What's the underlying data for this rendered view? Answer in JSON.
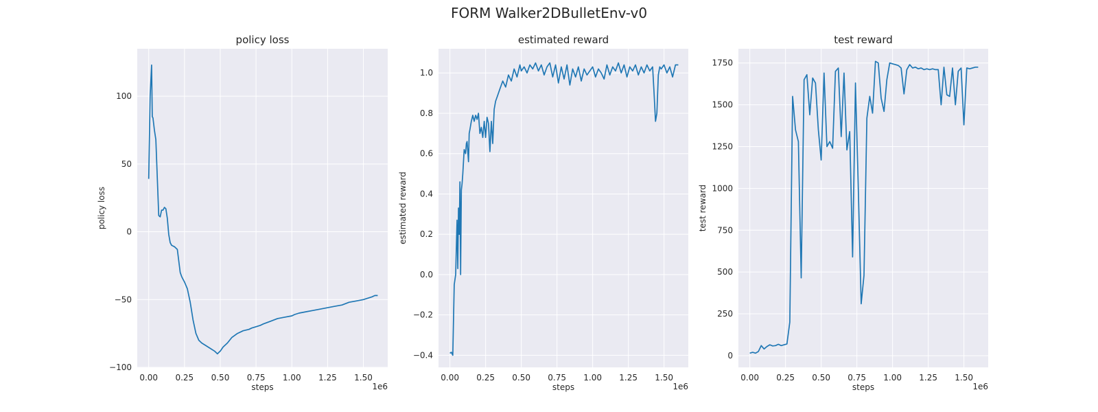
{
  "figure": {
    "suptitle": "FORM Walker2DBulletEnv-v0"
  },
  "chart_data": [
    {
      "type": "line",
      "title": "policy loss",
      "xlabel": "steps",
      "ylabel": "policy loss",
      "x_offset_label": "1e6",
      "xlim": [
        -0.08,
        1.67
      ],
      "ylim": [
        -100,
        135
      ],
      "xticks": [
        0.0,
        0.25,
        0.5,
        0.75,
        1.0,
        1.25,
        1.5
      ],
      "xtick_labels": [
        "0.00",
        "0.25",
        "0.50",
        "0.75",
        "1.00",
        "1.25",
        "1.50"
      ],
      "yticks": [
        -100,
        -50,
        0,
        50,
        100
      ],
      "ytick_labels": [
        "−100",
        "−50",
        "0",
        "50",
        "100"
      ],
      "grid": true,
      "color": "#1f77b4",
      "x": [
        0.0,
        0.01,
        0.02,
        0.025,
        0.03,
        0.04,
        0.05,
        0.06,
        0.07,
        0.08,
        0.09,
        0.1,
        0.11,
        0.12,
        0.13,
        0.14,
        0.15,
        0.16,
        0.17,
        0.18,
        0.2,
        0.22,
        0.23,
        0.24,
        0.25,
        0.27,
        0.29,
        0.31,
        0.33,
        0.35,
        0.37,
        0.4,
        0.43,
        0.46,
        0.48,
        0.5,
        0.52,
        0.55,
        0.58,
        0.62,
        0.66,
        0.7,
        0.72,
        0.75,
        0.78,
        0.8,
        0.85,
        0.9,
        0.95,
        1.0,
        1.02,
        1.05,
        1.1,
        1.15,
        1.2,
        1.25,
        1.3,
        1.35,
        1.4,
        1.45,
        1.5,
        1.53,
        1.56,
        1.58,
        1.6
      ],
      "y": [
        39,
        100,
        123,
        85,
        84,
        75,
        68,
        40,
        12,
        11,
        16,
        16,
        18,
        17,
        10,
        -2,
        -8,
        -10,
        -10.5,
        -11,
        -13,
        -30,
        -33,
        -35,
        -37,
        -42,
        -52,
        -65,
        -75,
        -80,
        -82,
        -84,
        -86,
        -88,
        -90,
        -88,
        -85,
        -82,
        -78,
        -75,
        -73,
        -72,
        -71,
        -70,
        -69,
        -68,
        -66,
        -64,
        -63,
        -62,
        -61,
        -60,
        -59,
        -58,
        -57,
        -56,
        -55,
        -54,
        -52,
        -51,
        -50,
        -49,
        -48,
        -47,
        -47
      ]
    },
    {
      "type": "line",
      "title": "estimated reward",
      "xlabel": "steps",
      "ylabel": "estimated reward",
      "x_offset_label": "1e6",
      "xlim": [
        -0.08,
        1.67
      ],
      "ylim": [
        -0.46,
        1.12
      ],
      "xticks": [
        0.0,
        0.25,
        0.5,
        0.75,
        1.0,
        1.25,
        1.5
      ],
      "xtick_labels": [
        "0.00",
        "0.25",
        "0.50",
        "0.75",
        "1.00",
        "1.25",
        "1.50"
      ],
      "yticks": [
        -0.4,
        -0.2,
        0.0,
        0.2,
        0.4,
        0.6,
        0.8,
        1.0
      ],
      "ytick_labels": [
        "−0.4",
        "−0.2",
        "0.0",
        "0.2",
        "0.4",
        "0.6",
        "0.8",
        "1.0"
      ],
      "grid": true,
      "color": "#1f77b4",
      "x": [
        0.0,
        0.01,
        0.02,
        0.03,
        0.04,
        0.05,
        0.055,
        0.06,
        0.065,
        0.07,
        0.075,
        0.08,
        0.085,
        0.09,
        0.1,
        0.11,
        0.115,
        0.12,
        0.13,
        0.135,
        0.14,
        0.15,
        0.16,
        0.17,
        0.18,
        0.19,
        0.2,
        0.21,
        0.22,
        0.23,
        0.24,
        0.25,
        0.26,
        0.27,
        0.28,
        0.29,
        0.3,
        0.31,
        0.32,
        0.33,
        0.35,
        0.37,
        0.39,
        0.41,
        0.43,
        0.45,
        0.47,
        0.49,
        0.5,
        0.52,
        0.54,
        0.56,
        0.58,
        0.6,
        0.62,
        0.64,
        0.66,
        0.68,
        0.7,
        0.72,
        0.74,
        0.76,
        0.78,
        0.8,
        0.82,
        0.84,
        0.86,
        0.88,
        0.9,
        0.92,
        0.94,
        0.96,
        0.98,
        1.0,
        1.02,
        1.04,
        1.06,
        1.08,
        1.1,
        1.12,
        1.14,
        1.16,
        1.18,
        1.2,
        1.22,
        1.24,
        1.26,
        1.28,
        1.3,
        1.32,
        1.34,
        1.36,
        1.38,
        1.4,
        1.42,
        1.43,
        1.44,
        1.45,
        1.46,
        1.47,
        1.48,
        1.5,
        1.52,
        1.54,
        1.56,
        1.58,
        1.6
      ],
      "y": [
        -0.39,
        -0.385,
        -0.4,
        -0.05,
        0.0,
        0.27,
        0.03,
        0.33,
        0.2,
        0.46,
        0.0,
        0.42,
        0.45,
        0.5,
        0.62,
        0.6,
        0.65,
        0.66,
        0.56,
        0.7,
        0.72,
        0.76,
        0.79,
        0.76,
        0.79,
        0.77,
        0.8,
        0.7,
        0.73,
        0.68,
        0.76,
        0.68,
        0.78,
        0.75,
        0.61,
        0.76,
        0.65,
        0.82,
        0.86,
        0.88,
        0.92,
        0.96,
        0.93,
        0.99,
        0.96,
        1.02,
        0.98,
        1.04,
        1.01,
        1.03,
        1.0,
        1.04,
        1.02,
        1.05,
        1.01,
        1.04,
        0.99,
        1.03,
        1.05,
        0.98,
        1.04,
        0.95,
        1.03,
        0.97,
        1.04,
        0.94,
        1.02,
        0.98,
        1.03,
        0.96,
        1.02,
        0.99,
        1.01,
        1.03,
        0.98,
        1.02,
        1.0,
        0.97,
        1.04,
        0.99,
        1.03,
        1.01,
        1.05,
        1.0,
        1.04,
        0.98,
        1.03,
        1.01,
        1.04,
        0.99,
        1.03,
        1.0,
        1.04,
        1.01,
        1.03,
        0.9,
        0.76,
        0.8,
        0.99,
        1.03,
        1.02,
        1.04,
        1.0,
        1.03,
        0.98,
        1.04,
        1.04
      ]
    },
    {
      "type": "line",
      "title": "test reward",
      "xlabel": "steps",
      "ylabel": "test reward",
      "x_offset_label": "1e6",
      "xlim": [
        -0.08,
        1.67
      ],
      "ylim": [
        -70,
        1835
      ],
      "xticks": [
        0.0,
        0.25,
        0.5,
        0.75,
        1.0,
        1.25,
        1.5
      ],
      "xtick_labels": [
        "0.00",
        "0.25",
        "0.50",
        "0.75",
        "1.00",
        "1.25",
        "1.50"
      ],
      "yticks": [
        0,
        250,
        500,
        750,
        1000,
        1250,
        1500,
        1750
      ],
      "ytick_labels": [
        "0",
        "250",
        "500",
        "750",
        "1000",
        "1250",
        "1500",
        "1750"
      ],
      "grid": true,
      "color": "#1f77b4",
      "x": [
        0.0,
        0.02,
        0.04,
        0.06,
        0.08,
        0.1,
        0.12,
        0.14,
        0.16,
        0.18,
        0.2,
        0.22,
        0.24,
        0.26,
        0.28,
        0.3,
        0.32,
        0.34,
        0.36,
        0.38,
        0.4,
        0.42,
        0.44,
        0.46,
        0.48,
        0.5,
        0.52,
        0.54,
        0.56,
        0.58,
        0.6,
        0.62,
        0.64,
        0.66,
        0.68,
        0.7,
        0.72,
        0.74,
        0.76,
        0.78,
        0.8,
        0.82,
        0.84,
        0.86,
        0.88,
        0.9,
        0.92,
        0.94,
        0.96,
        0.98,
        1.0,
        1.02,
        1.04,
        1.06,
        1.08,
        1.1,
        1.12,
        1.14,
        1.16,
        1.18,
        1.2,
        1.22,
        1.24,
        1.26,
        1.28,
        1.3,
        1.32,
        1.34,
        1.36,
        1.38,
        1.4,
        1.42,
        1.44,
        1.46,
        1.48,
        1.5,
        1.52,
        1.54,
        1.56,
        1.58,
        1.6
      ],
      "y": [
        15,
        20,
        15,
        25,
        60,
        40,
        55,
        65,
        58,
        60,
        68,
        60,
        65,
        70,
        200,
        1550,
        1350,
        1280,
        465,
        1650,
        1680,
        1440,
        1660,
        1630,
        1350,
        1170,
        1690,
        1250,
        1280,
        1240,
        1700,
        1720,
        1310,
        1690,
        1230,
        1340,
        590,
        1630,
        1000,
        310,
        480,
        1420,
        1550,
        1450,
        1760,
        1750,
        1540,
        1460,
        1650,
        1750,
        1745,
        1740,
        1735,
        1720,
        1565,
        1710,
        1740,
        1720,
        1725,
        1715,
        1720,
        1710,
        1715,
        1710,
        1715,
        1710,
        1710,
        1500,
        1725,
        1560,
        1550,
        1720,
        1500,
        1700,
        1720,
        1380,
        1720,
        1715,
        1720,
        1725,
        1725
      ]
    }
  ]
}
